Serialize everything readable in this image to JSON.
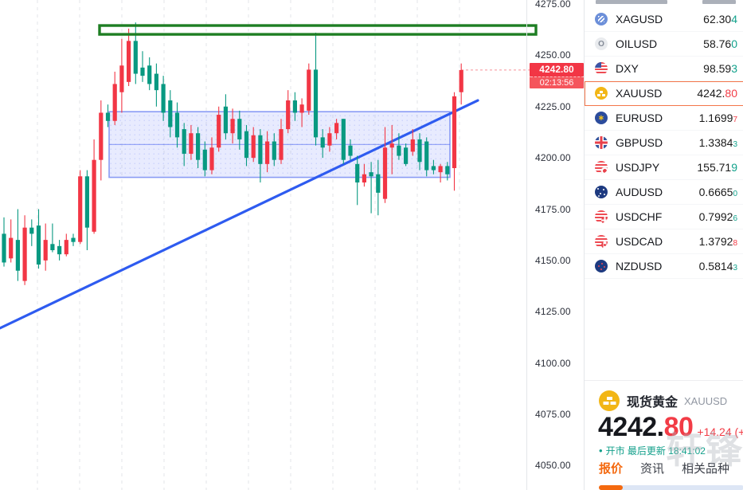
{
  "chart_data": {
    "type": "candlestick",
    "symbol": "XAUUSD",
    "current_price_label": "4242.80",
    "countdown": "02:13:56",
    "y_axis_ticks": [
      "4275.00",
      "4250.00",
      "4225.00",
      "4200.00",
      "4175.00",
      "4150.00",
      "4125.00",
      "4100.00",
      "4075.00",
      "4050.00"
    ],
    "price_axis": {
      "top_price": 4275,
      "bottom_price": 4050,
      "step": 25
    },
    "current_price": 4242.8,
    "candles": [
      [
        4163,
        4171,
        4147,
        4149
      ],
      [
        4151,
        4170,
        4149,
        4161
      ],
      [
        4160,
        4175,
        4140,
        4145
      ],
      [
        4140,
        4172,
        4138,
        4166
      ],
      [
        4166,
        4170,
        4157,
        4163
      ],
      [
        4167,
        4175,
        4146,
        4148
      ],
      [
        4150,
        4168,
        4145,
        4160
      ],
      [
        4158,
        4168,
        4154,
        4155
      ],
      [
        4157,
        4160,
        4150,
        4153
      ],
      [
        4153,
        4163,
        4152,
        4160
      ],
      [
        4161,
        4163,
        4157,
        4159
      ],
      [
        4159,
        4194,
        4158,
        4191
      ],
      [
        4191,
        4194,
        4155,
        4166
      ],
      [
        4164,
        4209,
        4163,
        4199
      ],
      [
        4199,
        4228,
        4189,
        4222
      ],
      [
        4222,
        4226,
        4215,
        4218
      ],
      [
        4218,
        4242,
        4216,
        4236
      ],
      [
        4232,
        4258,
        4222,
        4245
      ],
      [
        4237,
        4263,
        4235,
        4257
      ],
      [
        4257,
        4266,
        4236,
        4241
      ],
      [
        4244,
        4252,
        4237,
        4240
      ],
      [
        4245,
        4249,
        4233,
        4236
      ],
      [
        4241,
        4246,
        4225,
        4233
      ],
      [
        4236,
        4240,
        4218,
        4222
      ],
      [
        4228,
        4233,
        4210,
        4215
      ],
      [
        4222,
        4227,
        4205,
        4210
      ],
      [
        4214,
        4217,
        4196,
        4202
      ],
      [
        4202,
        4216,
        4199,
        4212
      ],
      [
        4212,
        4215,
        4195,
        4199
      ],
      [
        4204,
        4208,
        4191,
        4194
      ],
      [
        4194,
        4210,
        4192,
        4205
      ],
      [
        4205,
        4225,
        4203,
        4221
      ],
      [
        4225,
        4231,
        4209,
        4212
      ],
      [
        4212,
        4224,
        4207,
        4219
      ],
      [
        4219,
        4223,
        4204,
        4209
      ],
      [
        4213,
        4216,
        4196,
        4200
      ],
      [
        4200,
        4215,
        4198,
        4211
      ],
      [
        4211,
        4214,
        4188,
        4197
      ],
      [
        4197,
        4213,
        4193,
        4208
      ],
      [
        4208,
        4212,
        4196,
        4199
      ],
      [
        4199,
        4219,
        4197,
        4214
      ],
      [
        4214,
        4233,
        4212,
        4228
      ],
      [
        4228,
        4232,
        4218,
        4222
      ],
      [
        4222,
        4229,
        4215,
        4226
      ],
      [
        4223,
        4246,
        4221,
        4243
      ],
      [
        4243,
        4261,
        4206,
        4210
      ],
      [
        4210,
        4214,
        4200,
        4205
      ],
      [
        4206,
        4215,
        4203,
        4212
      ],
      [
        4212,
        4219,
        4209,
        4217
      ],
      [
        4219,
        4219,
        4197,
        4199
      ],
      [
        4206,
        4209,
        4199,
        4201
      ],
      [
        4197,
        4201,
        4177,
        4188
      ],
      [
        4188,
        4197,
        4186,
        4192
      ],
      [
        4193,
        4198,
        4173,
        4191
      ],
      [
        4192,
        4199,
        4172,
        4183
      ],
      [
        4180,
        4215,
        4178,
        4205
      ],
      [
        4205,
        4216,
        4192,
        4207
      ],
      [
        4206,
        4212,
        4199,
        4201
      ],
      [
        4205,
        4207,
        4196,
        4197
      ],
      [
        4203,
        4214,
        4201,
        4209
      ],
      [
        4209,
        4212,
        4194,
        4198
      ],
      [
        4208,
        4210,
        4191,
        4194
      ],
      [
        4196,
        4199,
        4192,
        4194
      ],
      [
        4193,
        4197,
        4188,
        4196
      ],
      [
        4196,
        4198,
        4189,
        4192
      ],
      [
        4195,
        4232,
        4184,
        4230
      ],
      [
        4232,
        4246,
        4226,
        4242.8
      ]
    ],
    "annotations": {
      "resistance_band": {
        "price_top": 4264.5,
        "price_bottom": 4260.2
      },
      "channel": {
        "price_top": 4222.5,
        "price_mid": 4206.5,
        "price_bottom": 4190.5
      },
      "trendline": {
        "start_price": 4117,
        "end_price": 4228
      }
    },
    "colors": {
      "up": "#f23645",
      "down": "#089981",
      "trendline": "#2e5bf0",
      "band": "#1e7e23",
      "channel": "#5a73f5",
      "price_badge": "#f23645",
      "grid": "#e3e5ea"
    }
  },
  "watchlist": {
    "rows": [
      {
        "symbol": "XAGUSD",
        "price_main": "62.30",
        "price_last": "4",
        "last_color": "green",
        "small_last": false,
        "icon": "silver",
        "selected": false
      },
      {
        "symbol": "OILUSD",
        "price_main": "58.76",
        "price_last": "0",
        "last_color": "green",
        "small_last": false,
        "icon": "oil",
        "selected": false
      },
      {
        "symbol": "DXY",
        "price_main": "98.59",
        "price_last": "3",
        "last_color": "green",
        "small_last": false,
        "icon": "us",
        "selected": false
      },
      {
        "symbol": "XAUUSD",
        "price_main": "4242.",
        "price_last": "80",
        "last_color": "red",
        "small_last": false,
        "icon": "gold",
        "selected": true
      },
      {
        "symbol": "EURUSD",
        "price_main": "1.1699",
        "price_last": "7",
        "last_color": "red",
        "small_last": true,
        "icon": "eu",
        "selected": false
      },
      {
        "symbol": "GBPUSD",
        "price_main": "1.3384",
        "price_last": "3",
        "last_color": "green",
        "small_last": true,
        "icon": "uk",
        "selected": false
      },
      {
        "symbol": "USDJPY",
        "price_main": "155.71",
        "price_last": "9",
        "last_color": "green",
        "small_last": false,
        "icon": "usjp",
        "selected": false
      },
      {
        "symbol": "AUDUSD",
        "price_main": "0.6665",
        "price_last": "0",
        "last_color": "green",
        "small_last": true,
        "icon": "au",
        "selected": false
      },
      {
        "symbol": "USDCHF",
        "price_main": "0.7992",
        "price_last": "6",
        "last_color": "green",
        "small_last": true,
        "icon": "usch",
        "selected": false
      },
      {
        "symbol": "USDCAD",
        "price_main": "1.3792",
        "price_last": "8",
        "last_color": "red",
        "small_last": true,
        "icon": "usca",
        "selected": false
      },
      {
        "symbol": "NZDUSD",
        "price_main": "0.5814",
        "price_last": "3",
        "last_color": "green",
        "small_last": true,
        "icon": "nz",
        "selected": false
      }
    ]
  },
  "detail": {
    "name": "现货黄金",
    "symbol": "XAUUSD",
    "price_main": "4242.",
    "price_last": "80",
    "change_text": "+14.24 (+",
    "status_dot": "•",
    "status_text": "开市 最后更新 18:41:02",
    "tabs": [
      {
        "label": "报价",
        "active": true
      },
      {
        "label": "资讯",
        "active": false
      },
      {
        "label": "相关品种",
        "active": false
      }
    ],
    "watermark": "轩锋"
  }
}
